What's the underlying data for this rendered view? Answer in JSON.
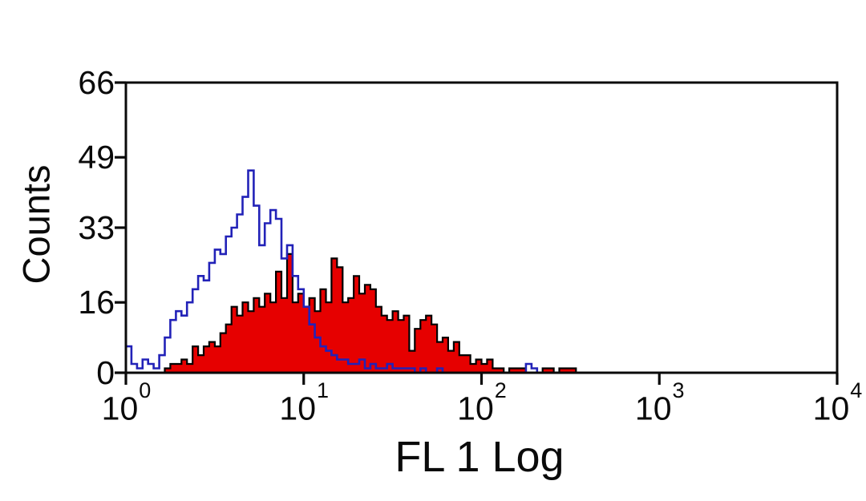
{
  "chart_data": {
    "type": "histogram-overlay",
    "title": "",
    "xlabel": "FL 1 Log",
    "ylabel": "Counts",
    "x_scale": "log10",
    "x_decades": [
      0,
      4
    ],
    "ylim": [
      0,
      66
    ],
    "grid": false,
    "legend": "none",
    "x_ticks": [
      {
        "base": "10",
        "exp": "0",
        "decade": 0
      },
      {
        "base": "10",
        "exp": "1",
        "decade": 1
      },
      {
        "base": "10",
        "exp": "2",
        "decade": 2
      },
      {
        "base": "10",
        "exp": "3",
        "decade": 3
      },
      {
        "base": "10",
        "exp": "4",
        "decade": 4
      }
    ],
    "y_ticks": [
      {
        "label": "0",
        "value": 0
      },
      {
        "label": "16",
        "value": 16
      },
      {
        "label": "33",
        "value": 33
      },
      {
        "label": "49",
        "value": 49
      },
      {
        "label": "66",
        "value": 66
      }
    ],
    "bins_per_series": 128,
    "colors": {
      "frame": "#0a0a0a",
      "red_fill": "#e60000",
      "red_outline": "#000000",
      "blue_line": "#2222b8"
    },
    "series": [
      {
        "name": "red-filled-histogram",
        "style": "filled",
        "values": [
          0,
          0,
          0,
          0,
          0,
          0,
          0,
          1,
          2,
          2,
          3,
          2,
          6,
          4,
          6,
          7,
          6,
          9,
          11,
          15,
          13,
          16,
          14,
          17,
          15,
          18,
          16,
          23,
          17,
          27,
          16,
          18,
          15,
          17,
          14,
          19,
          16,
          26,
          24,
          16,
          17,
          22,
          18,
          20,
          19,
          15,
          13,
          12,
          14,
          12,
          13,
          5,
          10,
          12,
          13,
          11,
          7,
          8,
          5,
          7,
          4,
          4,
          2,
          3,
          2,
          3,
          1,
          1,
          0,
          1,
          1,
          1,
          0,
          0,
          0,
          1,
          1,
          0,
          1,
          1,
          1,
          0,
          0,
          0,
          0,
          0,
          0,
          0,
          0,
          0,
          0,
          0,
          0,
          0,
          0,
          0,
          0,
          0,
          0,
          0,
          0,
          0,
          0,
          0,
          0,
          0,
          0,
          0,
          0,
          0,
          0,
          0,
          0,
          0,
          0,
          0,
          0,
          0,
          0,
          0,
          0,
          0,
          0,
          0,
          0,
          0,
          0,
          0
        ]
      },
      {
        "name": "blue-open-histogram",
        "style": "open",
        "values": [
          6,
          2,
          1,
          3,
          2,
          1,
          4,
          8,
          12,
          14,
          13,
          16,
          19,
          22,
          21,
          25,
          28,
          27,
          31,
          33,
          36,
          40,
          46,
          38,
          29,
          34,
          37,
          35,
          26,
          29,
          22,
          19,
          15,
          11,
          8,
          6,
          5,
          4,
          3,
          3,
          2,
          2,
          3,
          1,
          2,
          1,
          1,
          2,
          1,
          1,
          1,
          1,
          0,
          1,
          0,
          0,
          1,
          0,
          0,
          0,
          0,
          0,
          0,
          0,
          0,
          0,
          0,
          0,
          0,
          0,
          0,
          0,
          2,
          1,
          0,
          0,
          0,
          0,
          0,
          0,
          0,
          0,
          0,
          0,
          0,
          0,
          0,
          0,
          0,
          0,
          0,
          0,
          0,
          0,
          0,
          0,
          0,
          0,
          0,
          0,
          0,
          0,
          0,
          0,
          0,
          0,
          0,
          0,
          0,
          0,
          0,
          0,
          0,
          0,
          0,
          0,
          0,
          0,
          0,
          0,
          0,
          0,
          0,
          0,
          0,
          0,
          0,
          0
        ]
      }
    ]
  }
}
